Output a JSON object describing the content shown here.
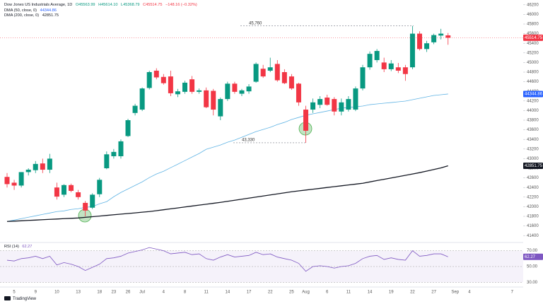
{
  "chart_data": [
    {
      "type": "candlestick",
      "title": "Dow Jones US Industrials Average, 1D",
      "ohlc_readout": [
        "O45563.99",
        "H45614.10",
        "L45368.79",
        "C45514.75",
        "−148.16 (−0.32%)"
      ],
      "categories": [
        null,
        "5",
        null,
        null,
        "9",
        null,
        null,
        "10",
        null,
        null,
        "13",
        null,
        null,
        "18",
        null,
        "23",
        null,
        "26",
        null,
        "Jul",
        null,
        null,
        "4",
        null,
        null,
        "8",
        null,
        null,
        "11",
        null,
        null,
        "14",
        null,
        null,
        "17",
        null,
        null,
        "22",
        null,
        null,
        "25",
        null,
        "Aug",
        null,
        null,
        "6",
        null,
        null,
        "11",
        null,
        null,
        "14",
        null,
        null,
        "19",
        null,
        null,
        "22",
        null,
        null,
        "27",
        null,
        null,
        "Sep",
        null,
        "4",
        null,
        null,
        null,
        null,
        null,
        "7"
      ],
      "open": [
        42620,
        42500,
        42440,
        42720,
        42760,
        42900,
        42770,
        42400,
        42250,
        42450,
        42300,
        42080,
        41980,
        42260,
        42800,
        43050,
        43050,
        43470,
        43950,
        44020,
        44470,
        44830,
        44700,
        44710,
        44340,
        44390,
        44650,
        44390,
        44420,
        44410,
        43880,
        44240,
        44560,
        44350,
        44400,
        44600,
        44870,
        44830,
        44970,
        44800,
        44710,
        44560,
        44020,
        44020,
        44120,
        44270,
        44240,
        43980,
        44020,
        44020,
        44460,
        44900,
        45050,
        45000,
        44860,
        44900,
        44900,
        44900,
        45600,
        45280,
        45420,
        45560,
        45563.99,
        null,
        null,
        null,
        null,
        null,
        null,
        null,
        null,
        null
      ],
      "high": [
        42700,
        42560,
        42720,
        42800,
        42950,
        43000,
        43100,
        42500,
        42470,
        42480,
        42350,
        42120,
        42280,
        42600,
        43150,
        43200,
        43400,
        43830,
        44140,
        44480,
        44830,
        44880,
        44760,
        44830,
        44450,
        44620,
        44720,
        44460,
        44480,
        44450,
        44270,
        44600,
        44600,
        44450,
        44550,
        45000,
        44950,
        45100,
        45050,
        44860,
        44760,
        44580,
        44100,
        44250,
        44300,
        44330,
        44280,
        44250,
        44300,
        44500,
        44950,
        45230,
        45280,
        45100,
        45050,
        44990,
        44950,
        45760,
        45650,
        45450,
        45600,
        45700,
        45614.1,
        null,
        null,
        null,
        null,
        null,
        null,
        null,
        null,
        null
      ],
      "low": [
        42400,
        42350,
        42400,
        42650,
        42700,
        42700,
        42700,
        42150,
        42200,
        42300,
        42150,
        41800,
        41950,
        42200,
        42780,
        43000,
        43000,
        43450,
        43900,
        43990,
        44440,
        44650,
        44540,
        44300,
        44280,
        44350,
        44350,
        44350,
        44050,
        43900,
        43800,
        44200,
        44350,
        44300,
        44350,
        44580,
        44680,
        44800,
        44600,
        44550,
        44430,
        44100,
        43330,
        43950,
        44050,
        44100,
        43900,
        43900,
        43980,
        43990,
        44420,
        44850,
        45000,
        44800,
        44820,
        44780,
        44620,
        44860,
        45250,
        45220,
        45380,
        45480,
        45368.79,
        null,
        null,
        null,
        null,
        null,
        null,
        null,
        null,
        null
      ],
      "close": [
        42470,
        42440,
        42720,
        42770,
        42890,
        42770,
        43000,
        42210,
        42450,
        42330,
        42200,
        41920,
        42250,
        42560,
        43090,
        43140,
        43360,
        43800,
        44100,
        44460,
        44800,
        44690,
        44570,
        44360,
        44400,
        44580,
        44390,
        44420,
        44070,
        44020,
        44240,
        44560,
        44390,
        44420,
        44500,
        44970,
        44710,
        44900,
        44630,
        44570,
        44460,
        44170,
        43580,
        44170,
        44240,
        44120,
        43980,
        44170,
        44240,
        44460,
        44900,
        45180,
        45240,
        44860,
        44980,
        44830,
        44760,
        45600,
        45280,
        45400,
        45570,
        45600,
        45514.75,
        null,
        null,
        null,
        null,
        null,
        null,
        null,
        null,
        null
      ],
      "up_color": "#089981",
      "down_color": "#f23645",
      "series": [
        {
          "name": "DMA (50, close, 0)",
          "color": "#5fb3e4",
          "values": [
            41693,
            41722,
            41752,
            41781,
            41810,
            41840,
            41869,
            41899,
            41913,
            41943,
            41958,
            41987,
            42002,
            42061,
            42105,
            42208,
            42296,
            42370,
            42444,
            42517,
            42606,
            42680,
            42738,
            42812,
            42885,
            42959,
            43033,
            43107,
            43195,
            43239,
            43283,
            43342,
            43386,
            43445,
            43504,
            43563,
            43607,
            43652,
            43710,
            43755,
            43814,
            43858,
            43902,
            43932,
            43961,
            43990,
            44020,
            44049,
            44064,
            44079,
            44094,
            44123,
            44138,
            44153,
            44167,
            44182,
            44197,
            44226,
            44256,
            44285,
            44315,
            44329,
            44344.86,
            null,
            null,
            null,
            null,
            null,
            null,
            null,
            null,
            null
          ]
        },
        {
          "name": "DMA (200, close, 0)",
          "color": "#131722",
          "values": [
            41693,
            41700,
            41707,
            41715,
            41722,
            41730,
            41737,
            41744,
            41752,
            41759,
            41766,
            41780,
            41793,
            41806,
            41819,
            41833,
            41846,
            41859,
            41872,
            41886,
            41899,
            41918,
            41937,
            41956,
            41975,
            41995,
            42014,
            42033,
            42052,
            42071,
            42090,
            42112,
            42134,
            42157,
            42179,
            42201,
            42223,
            42245,
            42267,
            42289,
            42311,
            42329,
            42347,
            42364,
            42382,
            42400,
            42417,
            42435,
            42453,
            42470,
            42488,
            42516,
            42544,
            42570,
            42598,
            42626,
            42653,
            42681,
            42709,
            42741,
            42774,
            42807,
            42851.75,
            null,
            null,
            null,
            null,
            null,
            null,
            null,
            null,
            null
          ]
        }
      ],
      "ylim": [
        41300,
        46300
      ],
      "yticks": [
        41400,
        41600,
        41800,
        42000,
        42200,
        42400,
        42600,
        42800,
        43000,
        43200,
        43400,
        43600,
        43800,
        44000,
        44200,
        44400,
        44600,
        44800,
        45000,
        45200,
        45400,
        45600,
        45800,
        46000,
        46200
      ],
      "grid": false,
      "annotations": [
        {
          "value": 45760,
          "label": "45,760"
        },
        {
          "value": 43330,
          "label": "43,330"
        }
      ],
      "watermark": "TradingView"
    },
    {
      "type": "line",
      "name": "RSI (14)",
      "color": "#7e57c2",
      "values": [
        58,
        57,
        60,
        61,
        63,
        60,
        63,
        52,
        55,
        53,
        50,
        45,
        49,
        53,
        60,
        61,
        63,
        67,
        69,
        71,
        74,
        72,
        70,
        66,
        67,
        68,
        65,
        66,
        60,
        58,
        62,
        65,
        62,
        63,
        64,
        68,
        65,
        66,
        62,
        60,
        58,
        54,
        44,
        50,
        51,
        50,
        48,
        50,
        51,
        54,
        60,
        63,
        64,
        59,
        61,
        59,
        58,
        70,
        63,
        64,
        66,
        66,
        62.27,
        null,
        null,
        null,
        null,
        null,
        null,
        null,
        null,
        null
      ],
      "ylim": [
        25,
        75
      ],
      "yticks": [
        {
          "value": 30,
          "label": "30.00"
        },
        {
          "value": 50,
          "label": "50.00"
        },
        {
          "value": 70,
          "label": "70.00"
        }
      ]
    }
  ]
}
